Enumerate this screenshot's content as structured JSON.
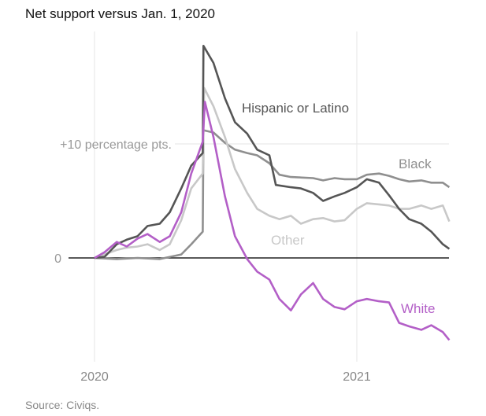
{
  "chart_data": {
    "type": "line",
    "title": "Net support versus Jan. 1, 2020",
    "source": "Source: Civiqs.",
    "xlabel": "",
    "ylabel": "",
    "xlim": [
      "2020-01-01",
      "2021-05-10"
    ],
    "ylim": [
      -9,
      20
    ],
    "y_ticks": [
      {
        "value": 0,
        "label": "0"
      },
      {
        "value": 10,
        "label": "+10 percentage pts."
      }
    ],
    "x_ticks": [
      {
        "value": "2020-01-01",
        "label": "2020"
      },
      {
        "value": "2021-01-01",
        "label": "2021"
      }
    ],
    "grid": true,
    "legend": "direct labels",
    "series": [
      {
        "name": "Black",
        "color": "#8f8f8f",
        "points": [
          [
            "2020-01-01",
            0
          ],
          [
            "2020-02-01",
            -0.1
          ],
          [
            "2020-03-01",
            0
          ],
          [
            "2020-04-01",
            -0.1
          ],
          [
            "2020-05-01",
            0.3
          ],
          [
            "2020-05-15",
            1.2
          ],
          [
            "2020-05-31",
            2.3
          ],
          [
            "2020-06-01",
            11.2
          ],
          [
            "2020-06-15",
            11.0
          ],
          [
            "2020-07-01",
            10.1
          ],
          [
            "2020-07-15",
            9.5
          ],
          [
            "2020-08-01",
            9.2
          ],
          [
            "2020-08-15",
            9.0
          ],
          [
            "2020-09-01",
            8.3
          ],
          [
            "2020-09-15",
            7.3
          ],
          [
            "2020-10-01",
            7.1
          ],
          [
            "2020-11-01",
            7.0
          ],
          [
            "2020-11-15",
            6.8
          ],
          [
            "2020-12-01",
            7.0
          ],
          [
            "2020-12-15",
            6.9
          ],
          [
            "2021-01-01",
            6.9
          ],
          [
            "2021-01-15",
            7.3
          ],
          [
            "2021-02-01",
            7.4
          ],
          [
            "2021-02-15",
            7.2
          ],
          [
            "2021-03-01",
            6.9
          ],
          [
            "2021-03-15",
            6.7
          ],
          [
            "2021-04-01",
            6.8
          ],
          [
            "2021-04-15",
            6.6
          ],
          [
            "2021-05-01",
            6.6
          ],
          [
            "2021-05-10",
            6.2
          ]
        ]
      },
      {
        "name": "Other",
        "color": "#c8c8c8",
        "points": [
          [
            "2020-01-01",
            0
          ],
          [
            "2020-02-01",
            0.7
          ],
          [
            "2020-02-15",
            0.9
          ],
          [
            "2020-03-01",
            1.0
          ],
          [
            "2020-03-15",
            1.2
          ],
          [
            "2020-04-01",
            0.7
          ],
          [
            "2020-04-15",
            1.2
          ],
          [
            "2020-05-01",
            3.3
          ],
          [
            "2020-05-15",
            6.1
          ],
          [
            "2020-05-31",
            7.4
          ],
          [
            "2020-06-02",
            14.9
          ],
          [
            "2020-06-15",
            13.3
          ],
          [
            "2020-07-01",
            10.6
          ],
          [
            "2020-07-15",
            7.8
          ],
          [
            "2020-08-01",
            5.7
          ],
          [
            "2020-08-15",
            4.3
          ],
          [
            "2020-09-01",
            3.7
          ],
          [
            "2020-09-15",
            3.4
          ],
          [
            "2020-10-01",
            3.7
          ],
          [
            "2020-10-15",
            3.0
          ],
          [
            "2020-11-01",
            3.4
          ],
          [
            "2020-11-15",
            3.5
          ],
          [
            "2020-12-01",
            3.2
          ],
          [
            "2020-12-15",
            3.3
          ],
          [
            "2021-01-01",
            4.3
          ],
          [
            "2021-01-15",
            4.8
          ],
          [
            "2021-02-01",
            4.7
          ],
          [
            "2021-02-15",
            4.6
          ],
          [
            "2021-03-01",
            4.3
          ],
          [
            "2021-03-15",
            4.3
          ],
          [
            "2021-04-01",
            4.6
          ],
          [
            "2021-04-15",
            4.3
          ],
          [
            "2021-05-01",
            4.6
          ],
          [
            "2021-05-10",
            3.2
          ]
        ]
      },
      {
        "name": "Hispanic or Latino",
        "color": "#555555",
        "points": [
          [
            "2020-01-01",
            0
          ],
          [
            "2020-01-15",
            0.1
          ],
          [
            "2020-02-01",
            1.2
          ],
          [
            "2020-02-15",
            1.6
          ],
          [
            "2020-03-01",
            1.9
          ],
          [
            "2020-03-15",
            2.8
          ],
          [
            "2020-04-01",
            3.0
          ],
          [
            "2020-04-15",
            4.0
          ],
          [
            "2020-05-01",
            6.1
          ],
          [
            "2020-05-15",
            8.1
          ],
          [
            "2020-05-31",
            9.2
          ],
          [
            "2020-06-01",
            18.6
          ],
          [
            "2020-06-15",
            17.1
          ],
          [
            "2020-07-01",
            14.0
          ],
          [
            "2020-07-15",
            11.9
          ],
          [
            "2020-08-01",
            10.9
          ],
          [
            "2020-08-15",
            9.5
          ],
          [
            "2020-09-01",
            9.0
          ],
          [
            "2020-09-10",
            6.4
          ],
          [
            "2020-10-01",
            6.2
          ],
          [
            "2020-10-15",
            6.1
          ],
          [
            "2020-11-01",
            5.7
          ],
          [
            "2020-11-15",
            5.0
          ],
          [
            "2020-12-01",
            5.4
          ],
          [
            "2020-12-15",
            5.7
          ],
          [
            "2021-01-01",
            6.2
          ],
          [
            "2021-01-15",
            6.9
          ],
          [
            "2021-02-01",
            6.6
          ],
          [
            "2021-02-15",
            5.5
          ],
          [
            "2021-03-01",
            4.3
          ],
          [
            "2021-03-15",
            3.4
          ],
          [
            "2021-04-01",
            3.0
          ],
          [
            "2021-04-15",
            2.3
          ],
          [
            "2021-05-01",
            1.2
          ],
          [
            "2021-05-10",
            0.8
          ]
        ]
      },
      {
        "name": "White",
        "color": "#b35fc7",
        "points": [
          [
            "2020-01-01",
            0
          ],
          [
            "2020-01-15",
            0.5
          ],
          [
            "2020-02-01",
            1.4
          ],
          [
            "2020-02-15",
            1.0
          ],
          [
            "2020-03-01",
            1.7
          ],
          [
            "2020-03-15",
            2.1
          ],
          [
            "2020-04-01",
            1.4
          ],
          [
            "2020-04-15",
            1.9
          ],
          [
            "2020-05-01",
            4.0
          ],
          [
            "2020-05-15",
            7.4
          ],
          [
            "2020-05-31",
            10.2
          ],
          [
            "2020-06-03",
            13.7
          ],
          [
            "2020-06-15",
            10.6
          ],
          [
            "2020-07-01",
            5.4
          ],
          [
            "2020-07-15",
            1.9
          ],
          [
            "2020-08-01",
            -0.1
          ],
          [
            "2020-08-15",
            -1.2
          ],
          [
            "2020-09-01",
            -1.9
          ],
          [
            "2020-09-15",
            -3.6
          ],
          [
            "2020-10-01",
            -4.6
          ],
          [
            "2020-10-15",
            -3.2
          ],
          [
            "2020-11-01",
            -2.2
          ],
          [
            "2020-11-15",
            -3.6
          ],
          [
            "2020-12-01",
            -4.3
          ],
          [
            "2020-12-15",
            -4.5
          ],
          [
            "2021-01-01",
            -3.8
          ],
          [
            "2021-01-15",
            -3.6
          ],
          [
            "2021-02-01",
            -3.8
          ],
          [
            "2021-02-15",
            -3.9
          ],
          [
            "2021-03-01",
            -5.7
          ],
          [
            "2021-03-15",
            -6.0
          ],
          [
            "2021-04-01",
            -6.3
          ],
          [
            "2021-04-15",
            -5.9
          ],
          [
            "2021-05-01",
            -6.5
          ],
          [
            "2021-05-10",
            -7.2
          ]
        ]
      }
    ]
  }
}
